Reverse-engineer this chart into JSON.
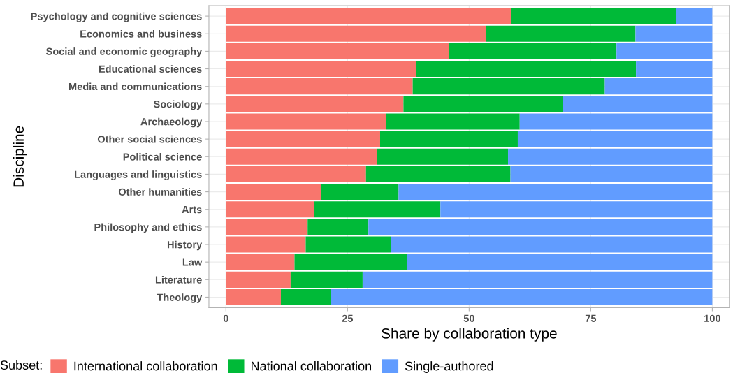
{
  "chart_data": {
    "type": "bar",
    "orientation": "horizontal",
    "stacked": true,
    "xlabel": "Share by collaboration type",
    "ylabel": "Discipline",
    "legend_title": "Subset:",
    "categories": [
      "Psychology and cognitive sciences",
      "Economics and business",
      "Social and economic geography",
      "Educational sciences",
      "Media and communications",
      "Sociology",
      "Archaeology",
      "Other social sciences",
      "Political science",
      "Languages and linguistics",
      "Other humanities",
      "Arts",
      "Philosophy and ethics",
      "History",
      "Law",
      "Literature",
      "Theology"
    ],
    "series": [
      {
        "name": "International collaboration",
        "color": "#f8766d",
        "values": [
          58.6,
          53.5,
          45.8,
          39.1,
          38.4,
          36.5,
          32.9,
          31.7,
          31.0,
          28.8,
          19.5,
          18.2,
          16.8,
          16.4,
          14.1,
          13.3,
          11.3
        ]
      },
      {
        "name": "National collaboration",
        "color": "#00ba38",
        "values": [
          33.9,
          30.7,
          34.5,
          45.2,
          39.5,
          32.8,
          27.5,
          28.3,
          27.0,
          29.7,
          16.0,
          25.9,
          12.5,
          17.6,
          23.1,
          14.8,
          10.3
        ]
      },
      {
        "name": "Single-authored",
        "color": "#619cff",
        "values": [
          7.5,
          15.8,
          19.7,
          15.7,
          22.1,
          30.7,
          39.6,
          40.0,
          42.0,
          41.5,
          64.5,
          55.9,
          70.7,
          66.0,
          62.8,
          71.9,
          78.4
        ]
      }
    ],
    "xlim": [
      -3.5,
      103.5
    ],
    "xticks": [
      0,
      25,
      50,
      75,
      100
    ],
    "grid": true,
    "legend": "bottom"
  }
}
